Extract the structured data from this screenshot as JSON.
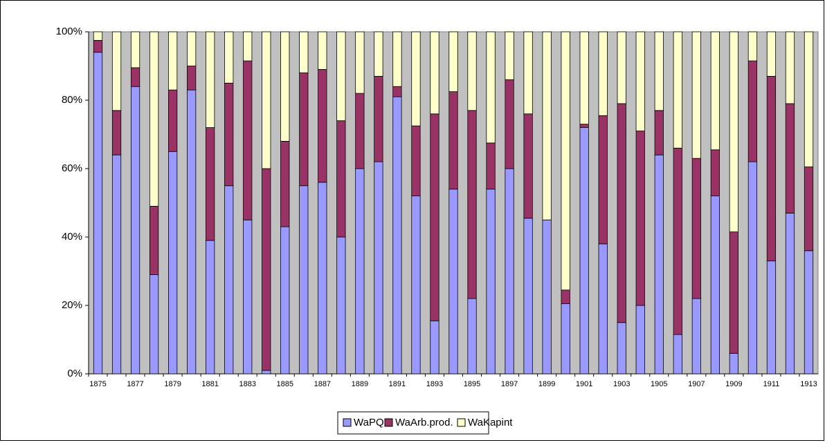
{
  "chart_data": {
    "type": "stacked_bar",
    "categories": [
      "1875",
      null,
      "1877",
      null,
      "1879",
      null,
      "1881",
      null,
      "1883",
      null,
      "1885",
      null,
      "1887",
      null,
      "1889",
      null,
      "1891",
      null,
      "1893",
      null,
      "1895",
      null,
      "1897",
      null,
      "1899",
      null,
      "1901",
      null,
      "1903",
      null,
      "1905",
      null,
      "1907",
      null,
      "1909",
      null,
      "1911",
      null,
      "1913"
    ],
    "series": [
      {
        "name": "WaPQ",
        "color": "#9999ff",
        "values": [
          94,
          64,
          84,
          29,
          65,
          83,
          39,
          55,
          45,
          1,
          43,
          55,
          56,
          40,
          60,
          62,
          81,
          52,
          15.5,
          54,
          22,
          54,
          60,
          45.5,
          45,
          20.5,
          72,
          38,
          15,
          20,
          64,
          11.5,
          22,
          52,
          6,
          62,
          33,
          47,
          36
        ]
      },
      {
        "name": "WaArb.prod.",
        "color": "#993366",
        "values": [
          3.5,
          13,
          5.5,
          20,
          18,
          7,
          33,
          30,
          46.5,
          59,
          25,
          33,
          33,
          34,
          22,
          25,
          3,
          20.5,
          60.5,
          28.5,
          55,
          13.5,
          26,
          30.5,
          0,
          4,
          1,
          37.5,
          64,
          51,
          13,
          54.5,
          41,
          13.5,
          35.5,
          29.5,
          54,
          32,
          24.5
        ]
      },
      {
        "name": "WaKapint",
        "color": "#ffffcc",
        "values": [
          2.5,
          23,
          10.5,
          51,
          17,
          10,
          28,
          15,
          8.5,
          40,
          32,
          12,
          11,
          26,
          18,
          13,
          16,
          27.5,
          24,
          17.5,
          23,
          32.5,
          14,
          24,
          55,
          75.5,
          27,
          24.5,
          21,
          29,
          23,
          34,
          37,
          34.5,
          58.5,
          8.5,
          13,
          21,
          39.5
        ]
      }
    ],
    "ylim": [
      0,
      100
    ],
    "yticks": [
      {
        "value": 0,
        "label": "0%"
      },
      {
        "value": 20,
        "label": "20%"
      },
      {
        "value": 40,
        "label": "40%"
      },
      {
        "value": 60,
        "label": "60%"
      },
      {
        "value": 80,
        "label": "80%"
      },
      {
        "value": 100,
        "label": "100%"
      }
    ],
    "plot_background": "#c0c0c0",
    "legend": "bottom"
  }
}
